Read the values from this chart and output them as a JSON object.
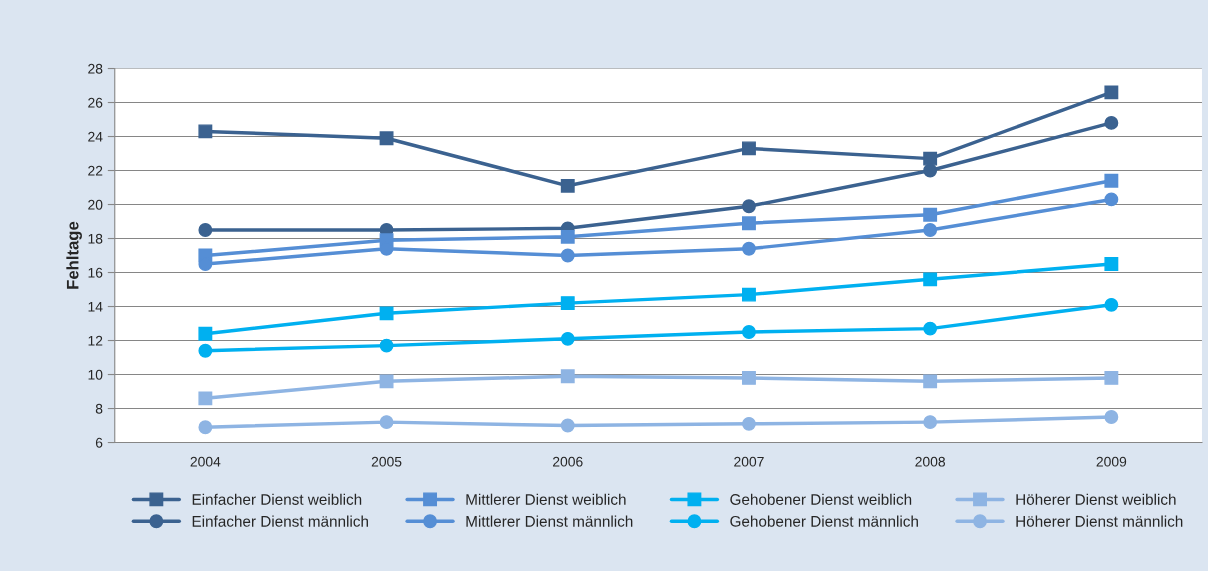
{
  "chart_data": {
    "type": "line",
    "ylabel": "Fehltage",
    "categories": [
      "2004",
      "2005",
      "2006",
      "2007",
      "2008",
      "2009"
    ],
    "series": [
      {
        "name": "Einfacher Dienst weiblich",
        "color": "#3b6290",
        "marker": "square",
        "values": [
          24.3,
          23.9,
          21.1,
          23.3,
          22.7,
          26.6
        ]
      },
      {
        "name": "Einfacher Dienst männlich",
        "color": "#3b6290",
        "marker": "circle",
        "values": [
          18.5,
          18.5,
          18.6,
          19.9,
          22.0,
          24.8
        ]
      },
      {
        "name": "Mittlerer Dienst weiblich",
        "color": "#558ed5",
        "marker": "square",
        "values": [
          17.0,
          17.9,
          18.1,
          18.9,
          19.4,
          21.4
        ]
      },
      {
        "name": "Mittlerer Dienst männlich",
        "color": "#558ed5",
        "marker": "circle",
        "values": [
          16.5,
          17.4,
          17.0,
          17.4,
          18.5,
          20.3
        ]
      },
      {
        "name": "Gehobener Dienst weiblich",
        "color": "#00b0f0",
        "marker": "square",
        "values": [
          12.4,
          13.6,
          14.2,
          14.7,
          15.6,
          16.5
        ]
      },
      {
        "name": "Gehobener Dienst männlich",
        "color": "#00b0f0",
        "marker": "circle",
        "values": [
          11.4,
          11.7,
          12.1,
          12.5,
          12.7,
          14.1
        ]
      },
      {
        "name": "Höherer Dienst weiblich",
        "color": "#8eb4e3",
        "marker": "square",
        "values": [
          8.6,
          9.6,
          9.9,
          9.8,
          9.6,
          9.8
        ]
      },
      {
        "name": "Höherer Dienst männlich",
        "color": "#8eb4e3",
        "marker": "circle",
        "values": [
          6.9,
          7.2,
          7.0,
          7.1,
          7.2,
          7.5
        ]
      }
    ],
    "ylim": [
      6,
      28
    ],
    "yticks": [
      6,
      8,
      10,
      12,
      14,
      16,
      18,
      20,
      22,
      24,
      26,
      28
    ],
    "grid": "y",
    "legend": "bottom",
    "line_style": "solid"
  }
}
